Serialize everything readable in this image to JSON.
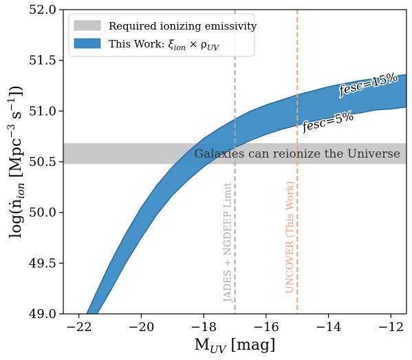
{
  "chart_data": {
    "type": "area",
    "xlabel_main": "M",
    "xlabel_sub": "UV",
    "xlabel_rest": " [mag]",
    "ylabel_text": "log(ṅ",
    "ylabel_sub": "ion",
    "ylabel_rest": " [Mpc",
    "ylabel_sup": "−3",
    "ylabel_end": " s",
    "ylabel_sup2": "−1",
    "ylabel_close": "])",
    "xlim": [
      -22.5,
      -11.5
    ],
    "ylim": [
      49.0,
      52.0
    ],
    "x_ticks": [
      -22,
      -20,
      -18,
      -16,
      -14,
      -12
    ],
    "x_tick_labels": [
      "−22",
      "−20",
      "−18",
      "−16",
      "−14",
      "−12"
    ],
    "y_ticks": [
      49.0,
      49.5,
      50.0,
      50.5,
      51.0,
      51.5,
      52.0
    ],
    "y_tick_labels": [
      "49.0",
      "49.5",
      "50.0",
      "50.5",
      "51.0",
      "51.5",
      "52.0"
    ],
    "grid": false,
    "legend_position": "top-left",
    "legend": [
      {
        "label": "Required ionizing emissivity",
        "color": "#c8c8c8"
      },
      {
        "label_main": "This Work: ",
        "label_math": "ξ",
        "label_sub1": "ion",
        "label_times": " × ρ",
        "label_sub2": "UV",
        "color": "#3a8cc4"
      }
    ],
    "required_band": {
      "y_low": 50.48,
      "y_high": 50.68,
      "color": "#c8c8c8",
      "label": "Galaxies can reionize the Universe"
    },
    "series": [
      {
        "name": "fesc=15%",
        "x": [
          -21.75,
          -21.5,
          -21.0,
          -20.5,
          -20.0,
          -19.5,
          -19.0,
          -18.5,
          -18.0,
          -17.5,
          -17.0,
          -16.5,
          -16.0,
          -15.5,
          -15.0,
          -14.5,
          -14.0,
          -13.5,
          -13.0,
          -12.5,
          -12.0,
          -11.5
        ],
        "y": [
          49.0,
          49.17,
          49.5,
          49.79,
          50.05,
          50.27,
          50.45,
          50.6,
          50.73,
          50.83,
          50.92,
          51.0,
          51.06,
          51.11,
          51.16,
          51.2,
          51.24,
          51.27,
          51.3,
          51.32,
          51.34,
          51.36
        ]
      },
      {
        "name": "fesc=5%",
        "x": [
          -21.42,
          -21.0,
          -20.5,
          -20.0,
          -19.5,
          -19.0,
          -18.5,
          -18.0,
          -17.5,
          -17.0,
          -16.5,
          -16.0,
          -15.5,
          -15.0,
          -14.5,
          -14.0,
          -13.5,
          -13.0,
          -12.5,
          -12.0,
          -11.5
        ],
        "y": [
          49.0,
          49.22,
          49.5,
          49.75,
          49.98,
          50.17,
          50.32,
          50.45,
          50.56,
          50.64,
          50.71,
          50.77,
          50.82,
          50.86,
          50.9,
          50.93,
          50.96,
          50.98,
          51.01,
          51.02,
          51.04
        ]
      }
    ],
    "band_color": "#3a8cc4",
    "band_edge_color": "#1f5f9a",
    "vlines": [
      {
        "x": -17.0,
        "label": "JADES + NGDEEP Limit",
        "color": "#aaaaaa"
      },
      {
        "x": -15.0,
        "label": "UNCOVER (This Work)",
        "color": "#f4a07a"
      }
    ],
    "curve_labels": [
      {
        "text_italic": "fesc",
        "text_rest": "=15%"
      },
      {
        "text_italic": "fesc",
        "text_rest": "=5%"
      }
    ]
  }
}
